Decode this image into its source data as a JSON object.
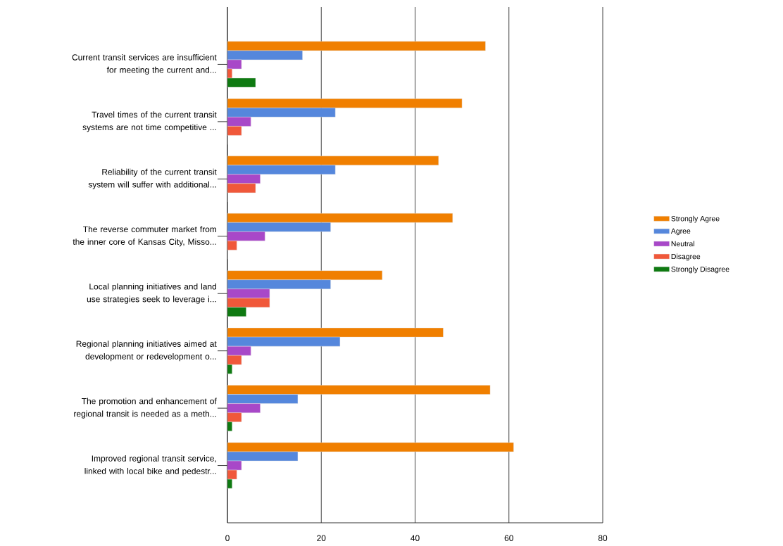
{
  "chart_data": {
    "type": "bar",
    "orientation": "horizontal",
    "categories": [
      "Current transit services are insufficient for meeting the current and...",
      "Travel times of the current transit systems are not time competitive ...",
      "Reliability of the current transit system will suffer with additional...",
      "The reverse commuter market from the inner core of Kansas City, Misso...",
      "Local planning initiatives and land use strategies seek to leverage i...",
      "Regional planning initiatives aimed at development or redevelopment o...",
      "The promotion and enhancement of regional transit is needed as a meth...",
      "Improved regional transit service, linked with local bike and pedestr..."
    ],
    "series": [
      {
        "name": "Strongly Agree",
        "color": "#f07f00",
        "values": [
          55,
          50,
          45,
          48,
          33,
          46,
          56,
          61
        ]
      },
      {
        "name": "Agree",
        "color": "#5587dc",
        "values": [
          16,
          23,
          23,
          22,
          22,
          24,
          15,
          15
        ]
      },
      {
        "name": "Neutral",
        "color": "#a848c8",
        "values": [
          3,
          5,
          7,
          8,
          9,
          5,
          7,
          3
        ]
      },
      {
        "name": "Disagree",
        "color": "#f0583a",
        "values": [
          1,
          3,
          6,
          2,
          9,
          3,
          3,
          2
        ]
      },
      {
        "name": "Strongly Disagree",
        "color": "#0f7a12",
        "values": [
          6,
          0,
          0,
          0,
          4,
          1,
          1,
          1
        ]
      }
    ],
    "xlim": [
      0,
      80
    ],
    "xticks": [
      0,
      20,
      40,
      60,
      80
    ],
    "grid": "x",
    "legend": "right"
  }
}
